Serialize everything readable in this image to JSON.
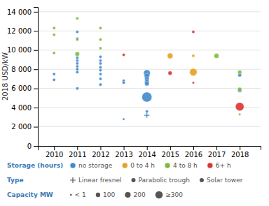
{
  "chart_data": {
    "type": "scatter",
    "ylabel": "2018 USD/kW",
    "xlim": [
      2009.3,
      2018.9
    ],
    "ylim": [
      0,
      14500
    ],
    "xticks": [
      2010,
      2011,
      2012,
      2013,
      2014,
      2015,
      2016,
      2017,
      2018
    ],
    "yticks": [
      0,
      {
        "value": 2000,
        "label": "2 000"
      },
      {
        "value": 4000,
        "label": "4 000"
      },
      {
        "value": 6000,
        "label": "6 000"
      },
      {
        "value": 8000,
        "label": "8 000"
      },
      {
        "value": 10000,
        "label": "10 000"
      },
      {
        "value": 12000,
        "label": "12 000"
      },
      {
        "value": 14000,
        "label": "14 000"
      }
    ],
    "grid": "y",
    "series": [
      {
        "color": "#4488cc",
        "marker": "circle",
        "x": [
          2010,
          2010,
          2011,
          2011,
          2011,
          2011,
          2011,
          2011,
          2011,
          2011,
          2011,
          2012,
          2012,
          2012,
          2012,
          2012,
          2012,
          2012,
          2012,
          2013,
          2013,
          2013,
          2014,
          2014,
          2014,
          2014,
          2014,
          2014,
          2014,
          2018,
          2018
        ],
        "values": [
          7500,
          6900,
          11900,
          11200,
          9200,
          8900,
          8600,
          8300,
          8000,
          7700,
          6000,
          9300,
          8900,
          8600,
          8200,
          7900,
          7500,
          7000,
          6400,
          6800,
          6600,
          2800,
          7600,
          7300,
          7000,
          6700,
          6500,
          5100,
          3600,
          7400,
          5800
        ],
        "sizes": [
          8,
          8,
          8,
          8,
          8,
          8,
          8,
          8,
          8,
          8,
          8,
          8,
          8,
          8,
          8,
          8,
          8,
          8,
          8,
          8,
          8,
          5,
          40,
          25,
          18,
          18,
          18,
          90,
          8,
          12,
          15
        ]
      },
      {
        "color": "#e8a020",
        "marker": "circle",
        "x": [
          2015,
          2016,
          2016
        ],
        "values": [
          9400,
          9400,
          7700
        ],
        "sizes": [
          28,
          8,
          50
        ]
      },
      {
        "color": "#80bb40",
        "marker": "circle",
        "x": [
          2010,
          2010,
          2010,
          2011,
          2011,
          2011,
          2012,
          2012,
          2012,
          2017,
          2018,
          2018,
          2018
        ],
        "values": [
          12300,
          11600,
          9700,
          13300,
          11100,
          9600,
          12300,
          11100,
          10200,
          9400,
          7700,
          5900,
          3300
        ],
        "sizes": [
          8,
          8,
          8,
          8,
          8,
          18,
          8,
          8,
          8,
          22,
          15,
          15,
          5
        ]
      },
      {
        "color": "#dd3333",
        "marker": "circle",
        "x": [
          2013,
          2015,
          2016,
          2016,
          2018
        ],
        "values": [
          9500,
          7600,
          11900,
          6600,
          4100
        ],
        "sizes": [
          8,
          15,
          8,
          5,
          65
        ]
      },
      {
        "color": "#4488cc",
        "marker": "plus",
        "x": [
          2014
        ],
        "values": [
          3200
        ],
        "sizes": [
          6
        ]
      }
    ],
    "legend_rows": [
      {
        "title": "Storage (hours)",
        "items": [
          {
            "label": "no storage",
            "color": "#4488cc"
          },
          {
            "label": "0 to 4 h",
            "color": "#e8a020"
          },
          {
            "label": "4 to 8 h",
            "color": "#80bb40"
          },
          {
            "label": "6+ h",
            "color": "#dd3333"
          }
        ]
      },
      {
        "title": "Type",
        "items": [
          {
            "label": "Linear fresnel",
            "marker": "plus"
          },
          {
            "label": "Parabolic trough",
            "marker": "circle"
          },
          {
            "label": "Solar tower",
            "marker": "circle"
          }
        ]
      },
      {
        "title": "Capacity MW",
        "items": [
          {
            "label": "< 1",
            "size": 3
          },
          {
            "label": "100",
            "size": 18
          },
          {
            "label": "200",
            "size": 30
          },
          {
            "label": "≥300",
            "size": 50
          }
        ]
      }
    ]
  }
}
